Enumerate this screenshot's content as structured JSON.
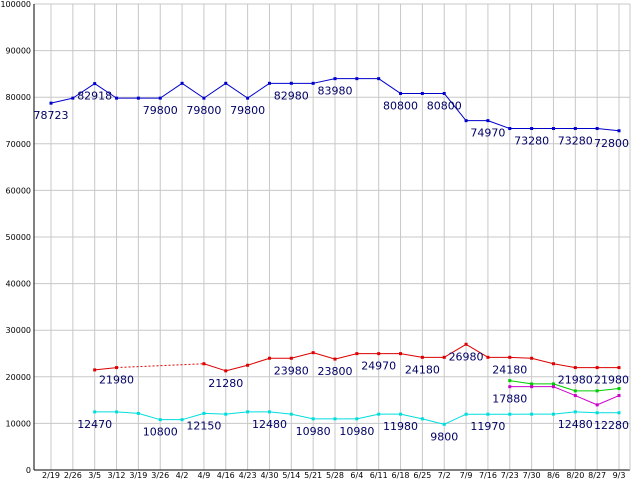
{
  "chart_data": {
    "type": "line",
    "title": "",
    "xlabel": "",
    "ylabel": "",
    "ylim": [
      0,
      100000
    ],
    "yticks": [
      0,
      10000,
      20000,
      30000,
      40000,
      50000,
      60000,
      70000,
      80000,
      90000,
      100000
    ],
    "grid": true,
    "legend": "none",
    "categories": [
      "2/19",
      "2/26",
      "3/5",
      "3/12",
      "3/19",
      "3/26",
      "4/2",
      "4/9",
      "4/16",
      "4/23",
      "4/30",
      "5/14",
      "5/21",
      "5/28",
      "6/4",
      "6/11",
      "6/18",
      "6/25",
      "7/2",
      "7/9",
      "7/16",
      "7/23",
      "7/30",
      "8/6",
      "8/20",
      "8/27",
      "9/3"
    ],
    "category_labels": [
      "2/19",
      "2/26",
      "3/5",
      "3/12",
      "3/19",
      "3/26",
      "4/2",
      "4/9",
      "4/16",
      "4/23",
      "4/30",
      "5/14",
      "5/21",
      "5/28",
      "6/4",
      "6/11",
      "6/18",
      "6/25",
      "7/2",
      "7/9",
      "7/16",
      "7/23",
      "7/30",
      "8/6",
      "8/20",
      "8/27",
      "9/3"
    ],
    "series": [
      {
        "color": "#0000cc",
        "values": [
          78723,
          79800,
          82918,
          79800,
          79800,
          79800,
          82980,
          79800,
          82980,
          79800,
          82980,
          82980,
          82980,
          83980,
          83980,
          83980,
          80800,
          80800,
          80800,
          74970,
          74970,
          73280,
          73280,
          73280,
          73280,
          73280,
          72800
        ],
        "labels": [
          {
            "i": 0,
            "text": "78723",
            "pos": "below"
          },
          {
            "i": 2,
            "text": "82918",
            "pos": "below"
          },
          {
            "i": 5,
            "text": "79800",
            "pos": "below"
          },
          {
            "i": 7,
            "text": "79800",
            "pos": "below"
          },
          {
            "i": 9,
            "text": "79800",
            "pos": "below"
          },
          {
            "i": 11,
            "text": "82980",
            "pos": "below"
          },
          {
            "i": 13,
            "text": "83980",
            "pos": "below"
          },
          {
            "i": 16,
            "text": "80800",
            "pos": "below"
          },
          {
            "i": 18,
            "text": "80800",
            "pos": "below"
          },
          {
            "i": 20,
            "text": "74970",
            "pos": "below"
          },
          {
            "i": 22,
            "text": "73280",
            "pos": "below"
          },
          {
            "i": 24,
            "text": "73280",
            "pos": "below"
          },
          {
            "i": 26,
            "text": "72800",
            "pos": "below"
          }
        ]
      },
      {
        "color": "#dd0000",
        "dashed_segments": [
          [
            3,
            7
          ]
        ],
        "values": [
          null,
          null,
          21480,
          21980,
          null,
          null,
          null,
          22800,
          21280,
          22480,
          23980,
          23980,
          25180,
          23800,
          24970,
          24970,
          24970,
          24180,
          24180,
          26980,
          24180,
          24180,
          23980,
          22800,
          21980,
          21980,
          21980
        ],
        "labels": [
          {
            "i": 3,
            "text": "21980",
            "pos": "below"
          },
          {
            "i": 8,
            "text": "21280",
            "pos": "below"
          },
          {
            "i": 11,
            "text": "23980",
            "pos": "below"
          },
          {
            "i": 13,
            "text": "23800",
            "pos": "below"
          },
          {
            "i": 15,
            "text": "24970",
            "pos": "below"
          },
          {
            "i": 17,
            "text": "24180",
            "pos": "below"
          },
          {
            "i": 19,
            "text": "26980",
            "pos": "below"
          },
          {
            "i": 21,
            "text": "24180",
            "pos": "below"
          },
          {
            "i": 24,
            "text": "21980",
            "pos": "below"
          },
          {
            "i": 26,
            "text": "21980",
            "pos": "below"
          }
        ]
      },
      {
        "color": "#00cc00",
        "values": [
          null,
          null,
          null,
          null,
          null,
          null,
          null,
          null,
          null,
          null,
          null,
          null,
          null,
          null,
          null,
          null,
          null,
          null,
          null,
          null,
          null,
          19180,
          18480,
          18480,
          16980,
          16980,
          17480
        ],
        "labels": []
      },
      {
        "color": "#cc00cc",
        "values": [
          null,
          null,
          null,
          null,
          null,
          null,
          null,
          null,
          null,
          null,
          null,
          null,
          null,
          null,
          null,
          null,
          null,
          null,
          null,
          null,
          null,
          17880,
          17880,
          17880,
          15980,
          13980,
          15980
        ],
        "labels": [
          {
            "i": 21,
            "text": "17880",
            "pos": "below"
          }
        ]
      },
      {
        "color": "#00dddd",
        "values": [
          null,
          null,
          12470,
          12470,
          12150,
          10800,
          10800,
          12150,
          11980,
          12480,
          12480,
          11980,
          10980,
          10980,
          10980,
          11980,
          11980,
          10980,
          9800,
          11970,
          11970,
          11970,
          11980,
          11980,
          12480,
          12280,
          12280
        ],
        "labels": [
          {
            "i": 2,
            "text": "12470",
            "pos": "below"
          },
          {
            "i": 5,
            "text": "10800",
            "pos": "below"
          },
          {
            "i": 7,
            "text": "12150",
            "pos": "below"
          },
          {
            "i": 10,
            "text": "12480",
            "pos": "below"
          },
          {
            "i": 12,
            "text": "10980",
            "pos": "below"
          },
          {
            "i": 14,
            "text": "10980",
            "pos": "below"
          },
          {
            "i": 16,
            "text": "11980",
            "pos": "below"
          },
          {
            "i": 18,
            "text": "9800",
            "pos": "below"
          },
          {
            "i": 20,
            "text": "11970",
            "pos": "below"
          },
          {
            "i": 24,
            "text": "12480",
            "pos": "below"
          },
          {
            "i": 26,
            "text": "12280",
            "pos": "below"
          }
        ]
      }
    ]
  }
}
